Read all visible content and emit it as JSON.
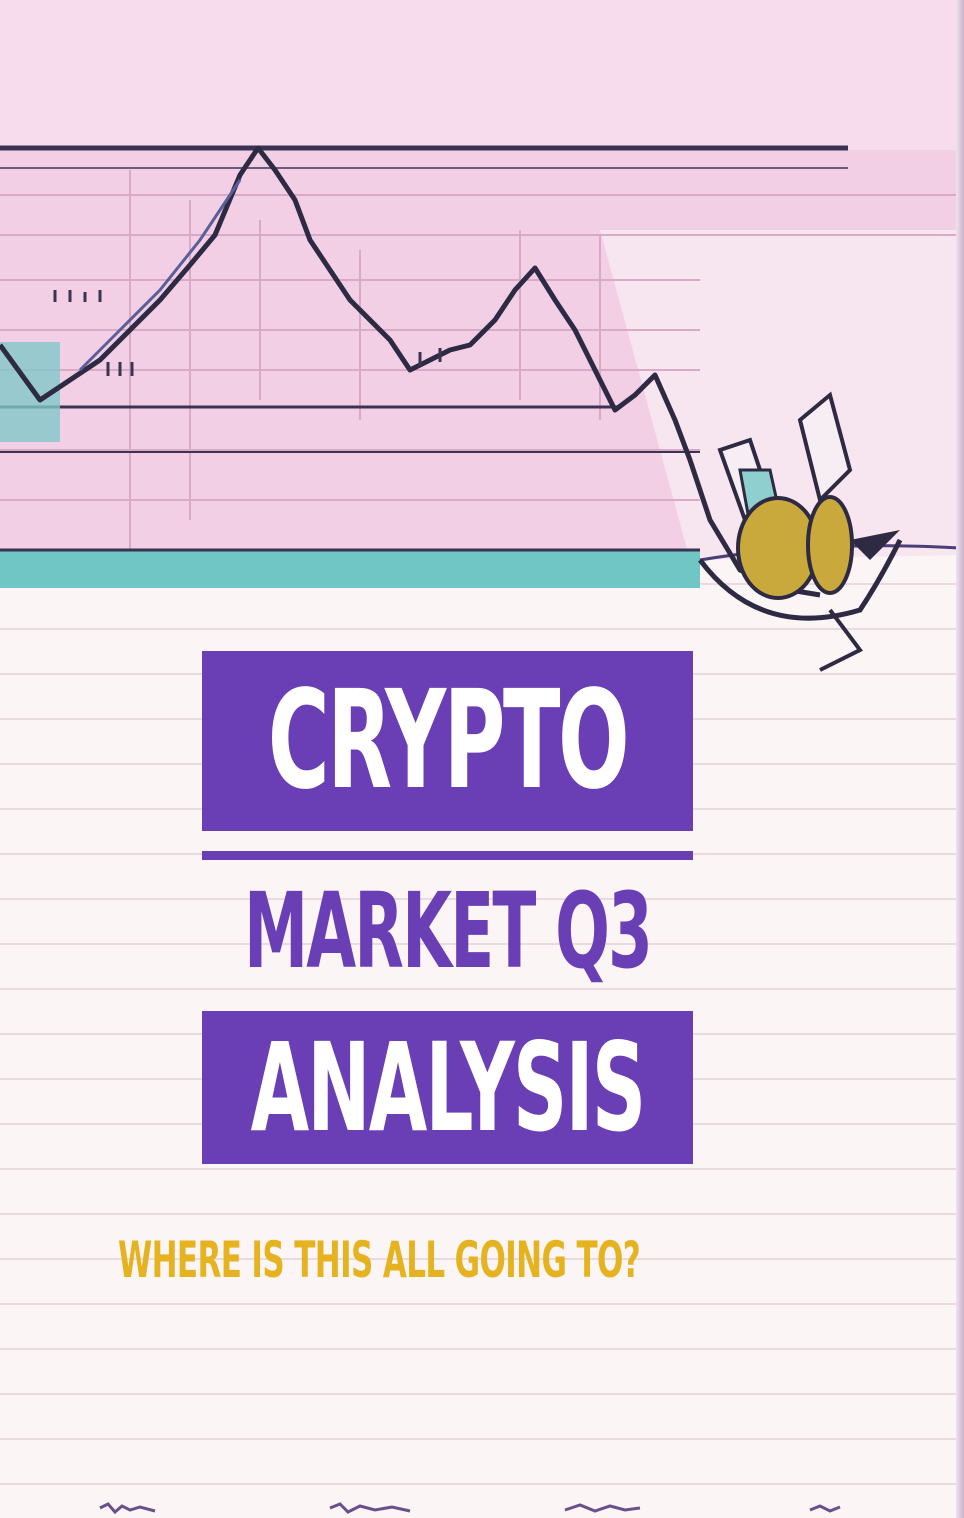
{
  "cover": {
    "title": "CRYPTO",
    "subtitle_line1": "MARKET Q3",
    "subtitle_line2": "ANALYSIS",
    "tagline": "WHERE IS THIS ALL GOING TO?"
  },
  "colors": {
    "accent_purple": "#6a3fb5",
    "tagline_gold": "#e6b320",
    "chart_pink": "#eab8da",
    "chart_line": "#2f2a44",
    "teal_band": "#6fc6c4",
    "background": "#faf4f4"
  }
}
